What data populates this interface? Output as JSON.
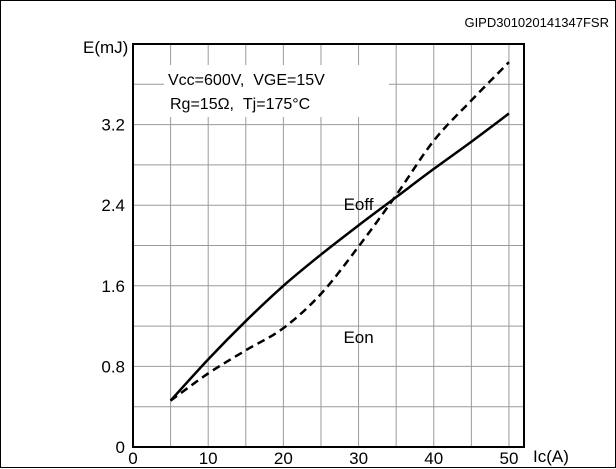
{
  "chart_data": {
    "type": "line",
    "code": "GIPD301020141347FSR",
    "ylabel": "E(mJ)",
    "xlabel": "Ic(A)",
    "conditions": [
      "Vcc=600V,  VGE=15V",
      "Rg=15Ω,  Tj=175°C"
    ],
    "xlim": [
      0,
      52
    ],
    "ylim": [
      0,
      4.0
    ],
    "x_ticks": [
      0,
      10,
      20,
      30,
      40,
      50
    ],
    "y_ticks": [
      0,
      0.8,
      1.6,
      2.4,
      3.2
    ],
    "x_tick_labels": [
      "0",
      "10",
      "20",
      "30",
      "40",
      "50"
    ],
    "y_tick_labels": [
      "0",
      "0.8",
      "1.6",
      "2.4",
      "3.2"
    ],
    "grid": true,
    "series": [
      {
        "name": "Eoff",
        "style": "solid",
        "color": "#000000",
        "x": [
          5,
          10,
          15,
          20,
          25,
          30,
          35,
          40,
          45,
          50
        ],
        "y": [
          0.46,
          0.87,
          1.25,
          1.6,
          1.91,
          2.2,
          2.48,
          2.76,
          3.03,
          3.31
        ]
      },
      {
        "name": "Eon",
        "style": "dashed",
        "color": "#000000",
        "x": [
          5,
          10,
          15,
          20,
          25,
          30,
          35,
          40,
          45,
          50
        ],
        "y": [
          0.46,
          0.73,
          0.96,
          1.18,
          1.52,
          1.99,
          2.5,
          3.04,
          3.44,
          3.82
        ]
      }
    ],
    "series_label_positions": [
      {
        "name": "Eoff",
        "at_x": 30,
        "at_y": 2.35
      },
      {
        "name": "Eon",
        "at_x": 30,
        "at_y": 1.03
      }
    ]
  }
}
